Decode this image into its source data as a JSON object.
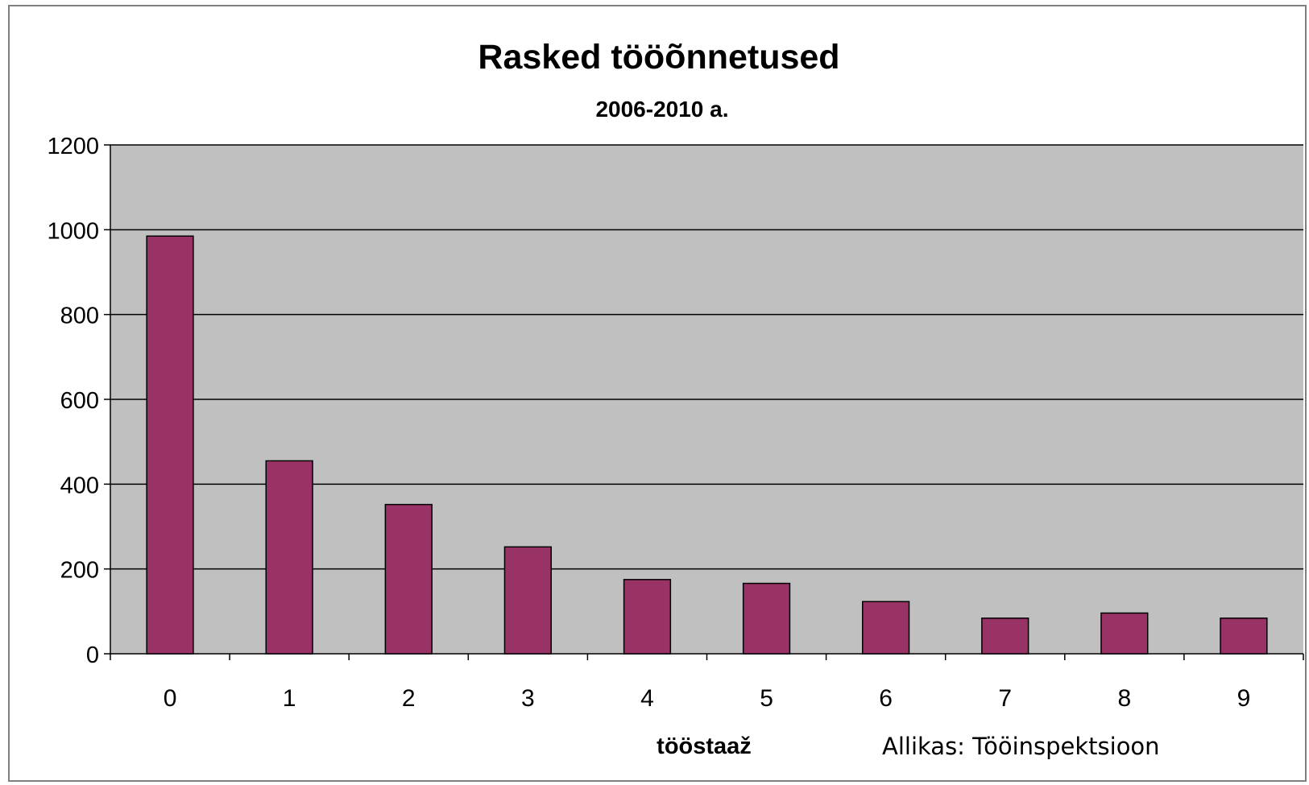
{
  "chart_data": {
    "type": "bar",
    "title": "Rasked tööõnnetused",
    "subtitle": "2006-2010 a.",
    "xlabel": "tööstaaž",
    "ylabel": "",
    "source": "Allikas: Tööinspektsioon",
    "categories": [
      "0",
      "1",
      "2",
      "3",
      "4",
      "5",
      "6",
      "7",
      "8",
      "9"
    ],
    "values": [
      985,
      455,
      352,
      252,
      175,
      166,
      123,
      84,
      96,
      84
    ],
    "ylim": [
      0,
      1200
    ],
    "yticks": [
      "0",
      "200",
      "400",
      "600",
      "800",
      "1000",
      "1200"
    ],
    "grid": true,
    "legend": "none",
    "colors": {
      "bar": "#993366",
      "plot_background": "#c0c0c0",
      "gridline": "#000000"
    }
  }
}
